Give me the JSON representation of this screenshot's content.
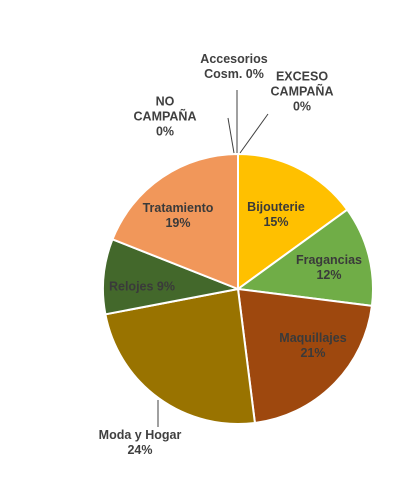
{
  "chart_data": {
    "type": "pie",
    "title": "",
    "colors": {
      "Bijouterie": "#FFC000",
      "Fragancias": "#70AD47",
      "Maquillajes": "#9E480E",
      "Moda y Hogar": "#997300",
      "Relojes": "#43682B",
      "Tratamiento": "#F1975A",
      "NO CAMPAÑA": "#5B9BD5",
      "Accesorios Cosm.": "#A5A5A5",
      "EXCESO CAMPAÑA": "#264478"
    },
    "slices": [
      {
        "name": "Bijouterie",
        "value": 15,
        "label_lines": [
          "Bijouterie",
          "15%"
        ]
      },
      {
        "name": "Fragancias",
        "value": 12,
        "label_lines": [
          "Fragancias",
          "12%"
        ]
      },
      {
        "name": "Maquillajes",
        "value": 21,
        "label_lines": [
          "Maquillajes",
          "21%"
        ]
      },
      {
        "name": "Moda y Hogar",
        "value": 24,
        "label_lines": [
          "Moda y Hogar",
          "24%"
        ]
      },
      {
        "name": "Relojes",
        "value": 9,
        "label_lines": [
          "Relojes 9%"
        ]
      },
      {
        "name": "Tratamiento",
        "value": 19,
        "label_lines": [
          "Tratamiento",
          "19%"
        ]
      },
      {
        "name": "NO CAMPAÑA",
        "value": 0,
        "label_lines": [
          "NO",
          "CAMPAÑA",
          "0%"
        ]
      },
      {
        "name": "Accesorios Cosm.",
        "value": 0,
        "label_lines": [
          "Accesorios",
          "Cosm. 0%"
        ]
      },
      {
        "name": "EXCESO CAMPAÑA",
        "value": 0,
        "label_lines": [
          "EXCESO",
          "CAMPAÑA",
          "0%"
        ]
      }
    ]
  }
}
